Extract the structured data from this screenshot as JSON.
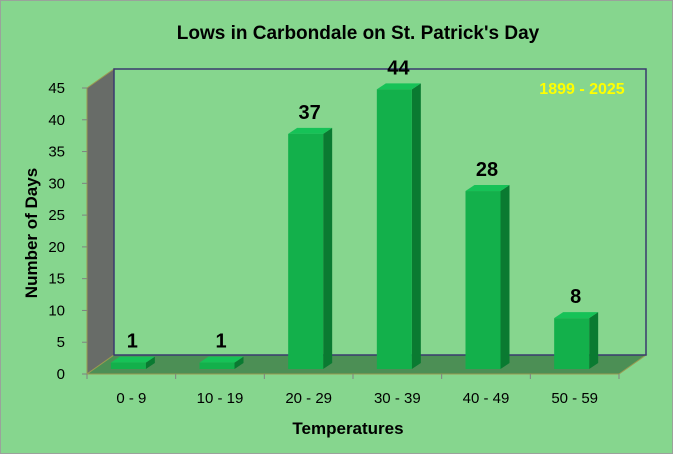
{
  "chart_data": {
    "type": "bar",
    "title": "Lows in Carbondale on St. Patrick's Day",
    "xlabel": "Temperatures",
    "ylabel": "Number of Days",
    "categories": [
      "0 - 9",
      "10 - 19",
      "20 - 29",
      "30 - 39",
      "40 - 49",
      "50 - 59"
    ],
    "values": [
      1,
      1,
      37,
      44,
      28,
      8
    ],
    "ylim": [
      0,
      45
    ],
    "yticks": [
      0,
      5,
      10,
      15,
      20,
      25,
      30,
      35,
      40,
      45
    ],
    "annotation": "1899 - 2025",
    "grid": false,
    "colors": {
      "background": "#86d68e",
      "bar_front": "#13b04b",
      "bar_side": "#0a7a31",
      "bar_top": "#16c257",
      "wall": "#686c68",
      "floor": "#4c8f55",
      "annotation": "#ffff00",
      "plot_border": "#3a3a6e"
    }
  }
}
